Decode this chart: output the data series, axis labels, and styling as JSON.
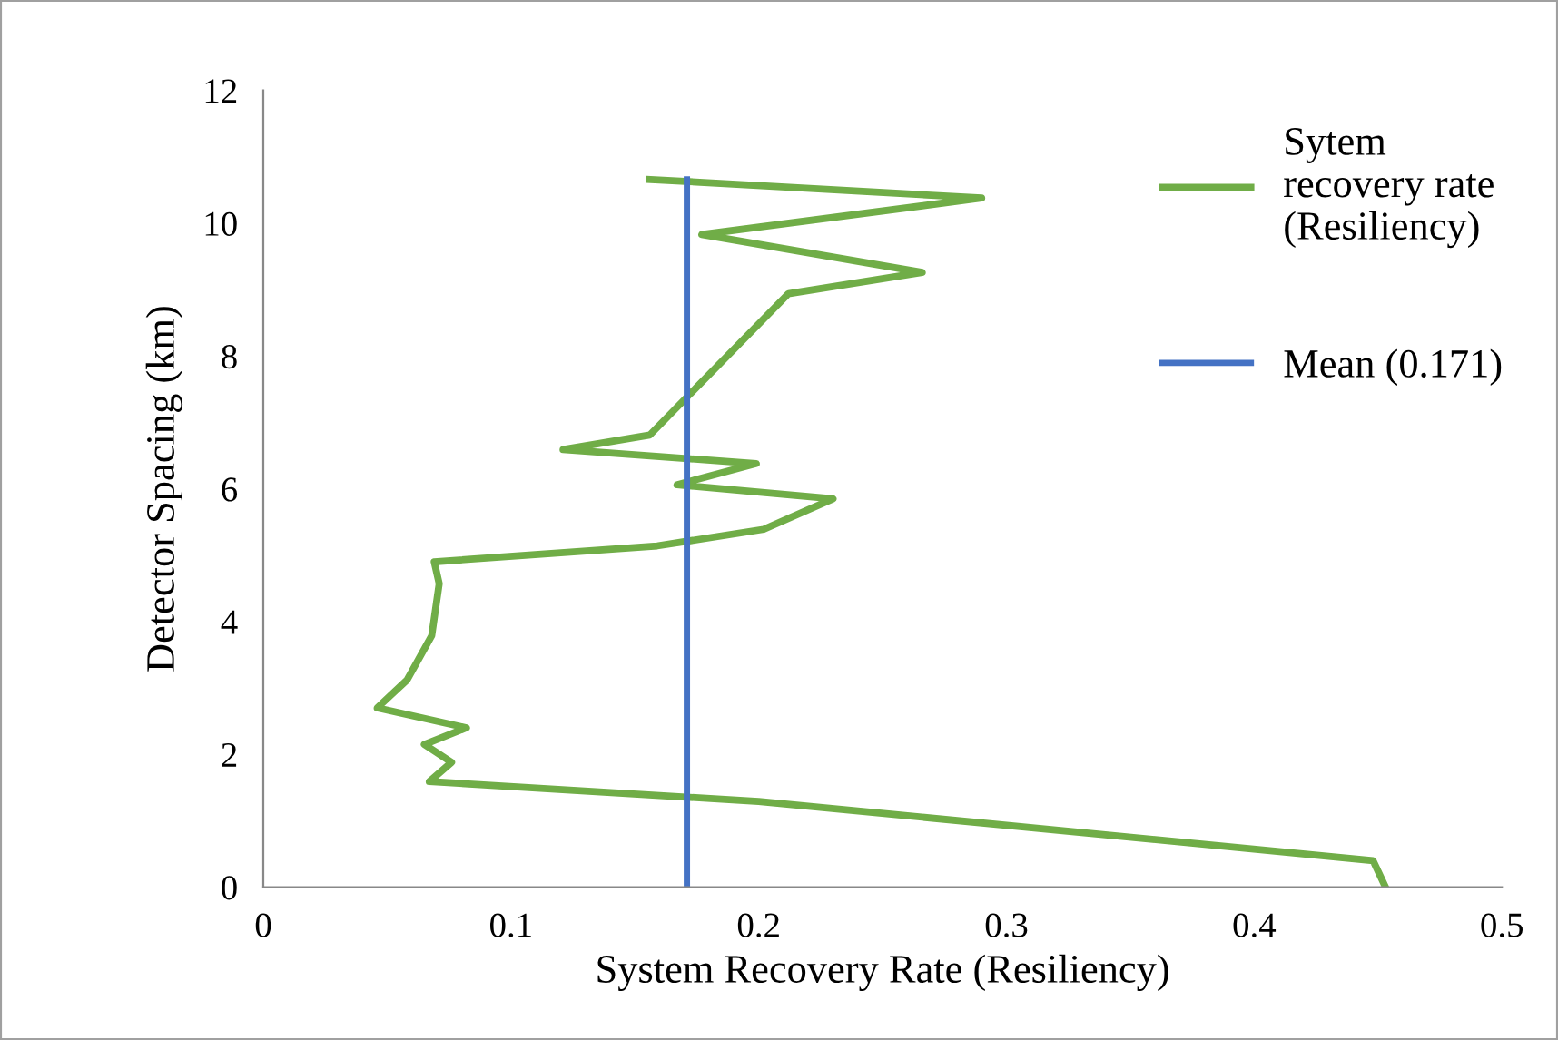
{
  "chart_data": {
    "type": "line",
    "xlabel": "System Recovery Rate (Resiliency)",
    "ylabel": "Detector Spacing (km)",
    "xlim": [
      0,
      0.5
    ],
    "xticks": [
      0,
      0.1,
      0.2,
      0.3,
      0.4,
      0.5
    ],
    "ylim": [
      0,
      12
    ],
    "yticks": [
      0,
      2,
      4,
      6,
      8,
      10,
      12
    ],
    "grid": false,
    "legend": "top right",
    "marker": "none",
    "line_style": "solid",
    "series": [
      {
        "name": "Sytem\nrecovery rate\n(Resiliency)",
        "color": "#70ad47",
        "x": [
          0.453,
          0.448,
          0.2,
          0.067,
          0.076,
          0.065,
          0.082,
          0.046,
          0.058,
          0.068,
          0.071,
          0.069,
          0.159,
          0.202,
          0.23,
          0.167,
          0.199,
          0.121,
          0.156,
          0.212,
          0.266,
          0.177,
          0.29,
          0.156
        ],
        "values": [
          0,
          0.4,
          1.29,
          1.59,
          1.88,
          2.15,
          2.4,
          2.7,
          3.12,
          3.79,
          4.57,
          4.9,
          5.14,
          5.39,
          5.85,
          6.06,
          6.38,
          6.59,
          6.81,
          8.94,
          9.26,
          9.83,
          10.38,
          10.66
        ]
      },
      {
        "name": "Mean (0.171)",
        "color": "#4472c4",
        "x": [
          0.171,
          0.171
        ],
        "values": [
          0,
          10.66
        ]
      }
    ]
  }
}
